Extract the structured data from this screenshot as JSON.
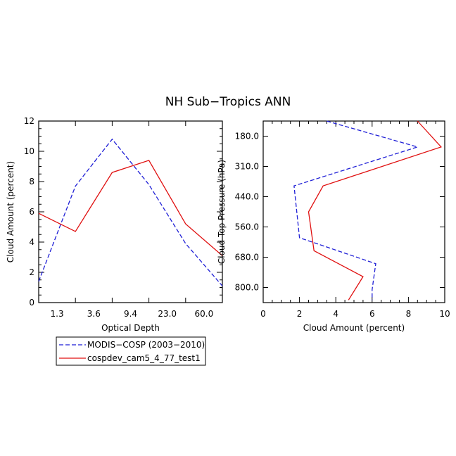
{
  "figure_title": "NH Sub−Tropics ANN",
  "colors": {
    "modis": "#1f1fd6",
    "cosp": "#e01010",
    "axis": "#000000"
  },
  "legend": {
    "entries": [
      {
        "label": "MODIS−COSP (2003−2010)",
        "series": "modis",
        "dash": true
      },
      {
        "label": "cospdev_cam5_4_77_test1",
        "series": "cosp",
        "dash": false
      }
    ]
  },
  "chart_data": [
    {
      "type": "line",
      "title": "",
      "xlabel": "Optical Depth",
      "ylabel": "Cloud Amount (percent)",
      "categories": [
        "1.3",
        "3.6",
        "9.4",
        "23.0",
        "60.0"
      ],
      "x_index_range": [
        0,
        5
      ],
      "ylim": [
        0,
        12
      ],
      "yticks": [
        0,
        2,
        4,
        6,
        8,
        10,
        12
      ],
      "series": [
        {
          "name": "MODIS−COSP (2003−2010)",
          "x": [
            0,
            1,
            2,
            3,
            4,
            5
          ],
          "y": [
            1.4,
            7.7,
            10.8,
            7.8,
            3.9,
            1.1
          ]
        },
        {
          "name": "cospdev_cam5_4_77_test1",
          "x": [
            0,
            1,
            2,
            3,
            4,
            5
          ],
          "y": [
            5.9,
            4.7,
            8.6,
            9.4,
            5.2,
            3.1
          ]
        }
      ]
    },
    {
      "type": "line",
      "title": "",
      "xlabel": "Cloud Amount (percent)",
      "ylabel": "Cloud Top Pressure (hPa)",
      "xlim": [
        0,
        10
      ],
      "xticks": [
        0,
        2,
        4,
        6,
        8,
        10
      ],
      "ylevels": [
        "180.0",
        "310.0",
        "440.0",
        "560.0",
        "680.0",
        "800.0"
      ],
      "y_index_range": [
        0,
        6
      ],
      "series": [
        {
          "name": "MODIS−COSP (2003−2010)",
          "x": [
            3.5,
            8.5,
            1.7,
            2.0,
            6.2,
            6.0,
            6.0
          ],
          "level_index": [
            0,
            1,
            2.5,
            4.5,
            5.5,
            6.5,
            6.9
          ]
        },
        {
          "name": "cospdev_cam5_4_77_test1",
          "x": [
            8.5,
            9.8,
            3.3,
            2.5,
            2.8,
            5.5,
            4.7
          ],
          "level_index": [
            0,
            1,
            2.5,
            3.5,
            5,
            6,
            6.9
          ]
        }
      ]
    }
  ]
}
